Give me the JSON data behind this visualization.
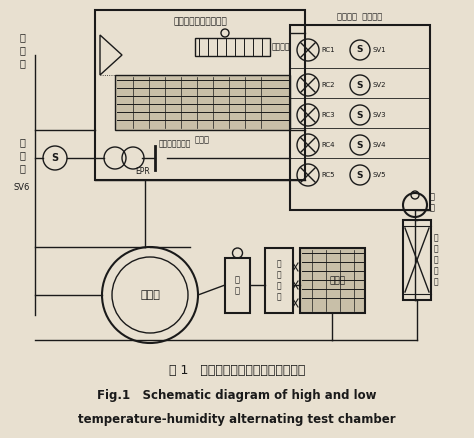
{
  "title_cn": "图 1   高低温交变湿热试验箱实验装置",
  "title_en1": "Fig.1   Schematic diagram of high and low",
  "title_en2": "temperature-humidity alternating test chamber",
  "bg_color": "#e8e0d0",
  "line_color": "#1a1a1a",
  "box_title": "高低温交变湿热试验箱",
  "fan_label": "循环风扇",
  "evap_label": "蒸发器",
  "expansion_label": "膨胀阀组  电磁阀组",
  "rc_labels": [
    "RC1",
    "RC2",
    "RC3",
    "RC4",
    "RC5"
  ],
  "sv_labels": [
    "SV1",
    "SV2",
    "SV3",
    "SV4",
    "SV5"
  ],
  "compressor_label": "压缩机",
  "condenser_label": "冷凝器",
  "epr_text1": "蒸发压力调节阀",
  "epr_text2": "EPR"
}
